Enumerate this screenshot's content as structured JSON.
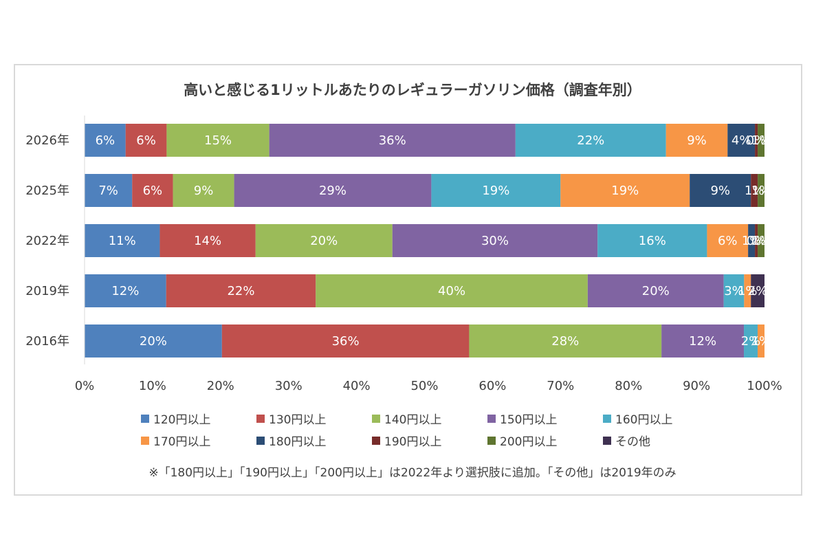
{
  "chart_data": {
    "type": "bar",
    "orientation": "horizontal",
    "stacked": "percent",
    "title": "高いと感じる1リットルあたりのレギュラーガソリン価格（調査年別）",
    "categories": [
      "2026年",
      "2025年",
      "2022年",
      "2019年",
      "2016年"
    ],
    "xlim": [
      0,
      100
    ],
    "x_ticks": [
      "0%",
      "10%",
      "20%",
      "30%",
      "40%",
      "50%",
      "60%",
      "70%",
      "80%",
      "90%",
      "100%"
    ],
    "grid": false,
    "legend_position": "bottom",
    "series": [
      {
        "name": "120円以上",
        "color": "#4f81bd",
        "values": [
          6,
          7,
          11,
          12,
          20
        ],
        "labels": [
          "6%",
          "7%",
          "11%",
          "12%",
          "20%"
        ]
      },
      {
        "name": "130円以上",
        "color": "#c0504d",
        "values": [
          6,
          6,
          14,
          22,
          36
        ],
        "labels": [
          "6%",
          "6%",
          "14%",
          "22%",
          "36%"
        ]
      },
      {
        "name": "140円以上",
        "color": "#9bbb59",
        "values": [
          15,
          9,
          20,
          40,
          28
        ],
        "labels": [
          "15%",
          "9%",
          "20%",
          "40%",
          "28%"
        ]
      },
      {
        "name": "150円以上",
        "color": "#8064a2",
        "values": [
          36,
          29,
          30,
          20,
          12
        ],
        "labels": [
          "36%",
          "29%",
          "30%",
          "20%",
          "12%"
        ]
      },
      {
        "name": "160円以上",
        "color": "#4bacc6",
        "values": [
          22,
          19,
          16,
          3,
          2
        ],
        "labels": [
          "22%",
          "19%",
          "16%",
          "3%",
          "2%"
        ]
      },
      {
        "name": "170円以上",
        "color": "#f79646",
        "values": [
          9,
          19,
          6,
          1,
          1
        ],
        "labels": [
          "9%",
          "19%",
          "6%",
          "1%",
          "1%"
        ]
      },
      {
        "name": "180円以上",
        "color": "#2c4d75",
        "values": [
          4,
          9,
          1,
          0,
          0
        ],
        "labels": [
          "4%",
          "9%",
          "1%",
          "",
          ""
        ]
      },
      {
        "name": "190円以上",
        "color": "#772c2a",
        "values": [
          0.4,
          1,
          0.4,
          0,
          0
        ],
        "labels": [
          "0%",
          "1%",
          "0%",
          "",
          ""
        ]
      },
      {
        "name": "200円以上",
        "color": "#5f7530",
        "values": [
          1,
          1,
          1,
          0,
          0
        ],
        "labels": [
          "1%",
          "1%",
          "1%",
          "",
          ""
        ]
      },
      {
        "name": "その他",
        "color": "#3f3151",
        "values": [
          0,
          0,
          0,
          2,
          0
        ],
        "labels": [
          "",
          "",
          "",
          "2%",
          ""
        ]
      }
    ]
  },
  "footnote": "※「180円以上」「190円以上」「200円以上」は2022年より選択肢に追加。「その他」は2019年のみ"
}
